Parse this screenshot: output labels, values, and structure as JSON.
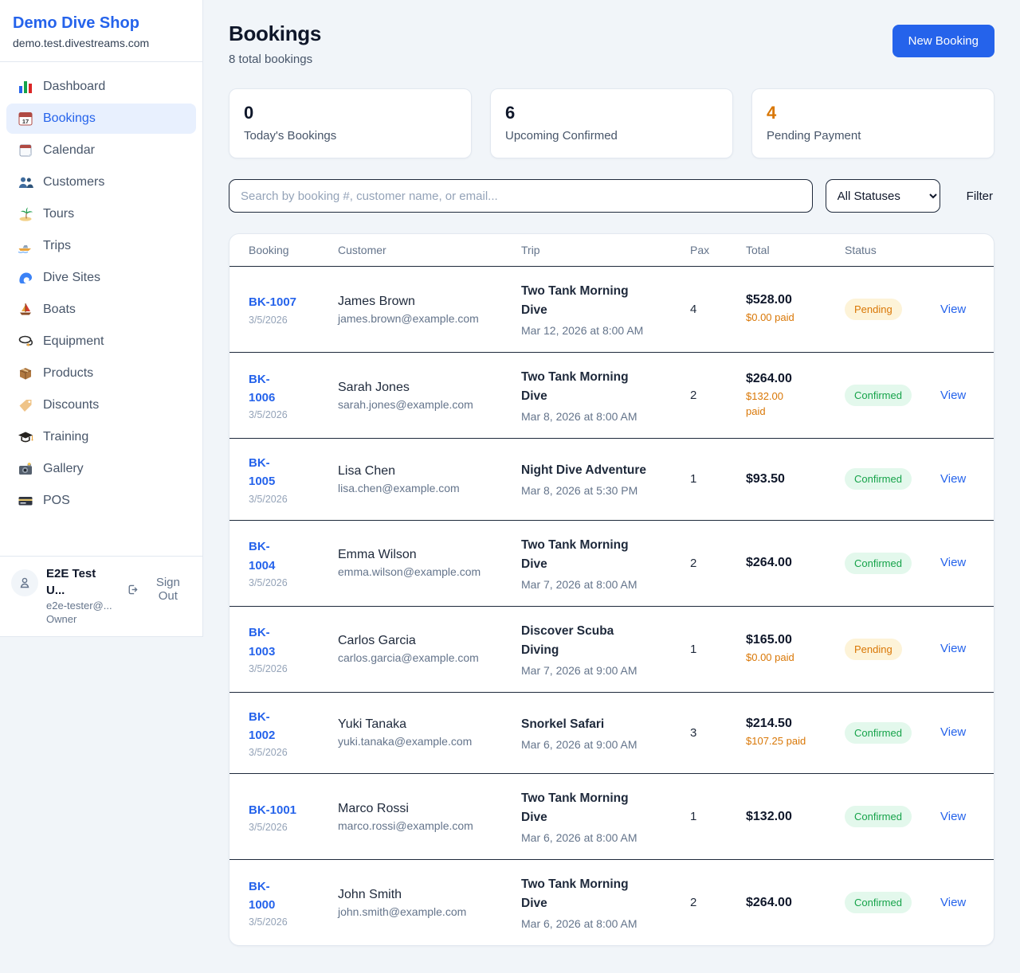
{
  "brand": {
    "name": "Demo Dive Shop",
    "domain": "demo.test.divestreams.com"
  },
  "sidebar": {
    "items": [
      {
        "label": "Dashboard",
        "icon": "bar-chart-icon",
        "active": false
      },
      {
        "label": "Bookings",
        "icon": "calendar-17-icon",
        "active": true
      },
      {
        "label": "Calendar",
        "icon": "calendar-icon",
        "active": false
      },
      {
        "label": "Customers",
        "icon": "users-icon",
        "active": false
      },
      {
        "label": "Tours",
        "icon": "island-icon",
        "active": false
      },
      {
        "label": "Trips",
        "icon": "speedboat-icon",
        "active": false
      },
      {
        "label": "Dive Sites",
        "icon": "wave-icon",
        "active": false
      },
      {
        "label": "Boats",
        "icon": "sailboat-icon",
        "active": false
      },
      {
        "label": "Equipment",
        "icon": "diving-mask-icon",
        "active": false
      },
      {
        "label": "Products",
        "icon": "package-icon",
        "active": false
      },
      {
        "label": "Discounts",
        "icon": "tag-icon",
        "active": false
      },
      {
        "label": "Training",
        "icon": "grad-cap-icon",
        "active": false
      },
      {
        "label": "Gallery",
        "icon": "camera-icon",
        "active": false
      },
      {
        "label": "POS",
        "icon": "credit-card-icon",
        "active": false
      }
    ],
    "user": {
      "name": "E2E Test U...",
      "email": "e2e-tester@...",
      "role": "Owner",
      "sign_out": "Sign Out"
    }
  },
  "header": {
    "title": "Bookings",
    "subtitle": "8 total bookings",
    "new_booking": "New Booking"
  },
  "stats": [
    {
      "value": "0",
      "label": "Today's Bookings",
      "accent": false
    },
    {
      "value": "6",
      "label": "Upcoming Confirmed",
      "accent": false
    },
    {
      "value": "4",
      "label": "Pending Payment",
      "accent": true
    }
  ],
  "filters": {
    "search_placeholder": "Search by booking #, customer name, or email...",
    "status_value": "All Statuses",
    "filter_label": "Filter"
  },
  "table": {
    "columns": [
      "Booking",
      "Customer",
      "Trip",
      "Pax",
      "Total",
      "Status"
    ],
    "rows": [
      {
        "id": "BK-1007",
        "id_nowrap": true,
        "date": "3/5/2026",
        "customer": "James Brown",
        "email": "james.brown@example.com",
        "trip": "Two Tank Morning Dive",
        "trip_nowrap": false,
        "trip_time": "Mar 12, 2026 at 8:00 AM",
        "pax": "4",
        "total": "$528.00",
        "paid": "$0.00 paid",
        "paid_wrap": false,
        "status": "Pending",
        "view": "View"
      },
      {
        "id": "BK-1006",
        "id_nowrap": false,
        "date": "3/5/2026",
        "customer": "Sarah Jones",
        "email": "sarah.jones@example.com",
        "trip": "Two Tank Morning Dive",
        "trip_nowrap": false,
        "trip_time": "Mar 8, 2026 at 8:00 AM",
        "pax": "2",
        "total": "$264.00",
        "paid": "$132.00 paid",
        "paid_wrap": true,
        "status": "Confirmed",
        "view": "View"
      },
      {
        "id": "BK-1005",
        "id_nowrap": false,
        "date": "3/5/2026",
        "customer": "Lisa Chen",
        "email": "lisa.chen@example.com",
        "trip": "Night Dive Adventure",
        "trip_nowrap": true,
        "trip_time": "Mar 8, 2026 at 5:30 PM",
        "pax": "1",
        "total": "$93.50",
        "paid": null,
        "paid_wrap": false,
        "status": "Confirmed",
        "view": "View"
      },
      {
        "id": "BK-1004",
        "id_nowrap": false,
        "date": "3/5/2026",
        "customer": "Emma Wilson",
        "email": "emma.wilson@example.com",
        "trip": "Two Tank Morning Dive",
        "trip_nowrap": false,
        "trip_time": "Mar 7, 2026 at 8:00 AM",
        "pax": "2",
        "total": "$264.00",
        "paid": null,
        "paid_wrap": false,
        "status": "Confirmed",
        "view": "View"
      },
      {
        "id": "BK-1003",
        "id_nowrap": false,
        "date": "3/5/2026",
        "customer": "Carlos Garcia",
        "email": "carlos.garcia@example.com",
        "trip": "Discover Scuba Diving",
        "trip_nowrap": false,
        "trip_time": "Mar 7, 2026 at 9:00 AM",
        "pax": "1",
        "total": "$165.00",
        "paid": "$0.00 paid",
        "paid_wrap": false,
        "status": "Pending",
        "view": "View"
      },
      {
        "id": "BK-1002",
        "id_nowrap": false,
        "date": "3/5/2026",
        "customer": "Yuki Tanaka",
        "email": "yuki.tanaka@example.com",
        "trip": "Snorkel Safari",
        "trip_nowrap": true,
        "trip_time": "Mar 6, 2026 at 9:00 AM",
        "pax": "3",
        "total": "$214.50",
        "paid": "$107.25 paid",
        "paid_wrap": false,
        "status": "Confirmed",
        "view": "View"
      },
      {
        "id": "BK-1001",
        "id_nowrap": true,
        "date": "3/5/2026",
        "customer": "Marco Rossi",
        "email": "marco.rossi@example.com",
        "trip": "Two Tank Morning Dive",
        "trip_nowrap": false,
        "trip_time": "Mar 6, 2026 at 8:00 AM",
        "pax": "1",
        "total": "$132.00",
        "paid": null,
        "paid_wrap": false,
        "status": "Confirmed",
        "view": "View"
      },
      {
        "id": "BK-1000",
        "id_nowrap": false,
        "date": "3/5/2026",
        "customer": "John Smith",
        "email": "john.smith@example.com",
        "trip": "Two Tank Morning Dive",
        "trip_nowrap": false,
        "trip_time": "Mar 6, 2026 at 8:00 AM",
        "pax": "2",
        "total": "$264.00",
        "paid": null,
        "paid_wrap": false,
        "status": "Confirmed",
        "view": "View"
      }
    ]
  },
  "colors": {
    "primary": "#2563eb",
    "pending_text": "#d97706",
    "pending_bg": "#fdf3d8",
    "confirmed_text": "#16a34a",
    "confirmed_bg": "#e3f8ec",
    "page_bg": "#f1f5f9"
  }
}
